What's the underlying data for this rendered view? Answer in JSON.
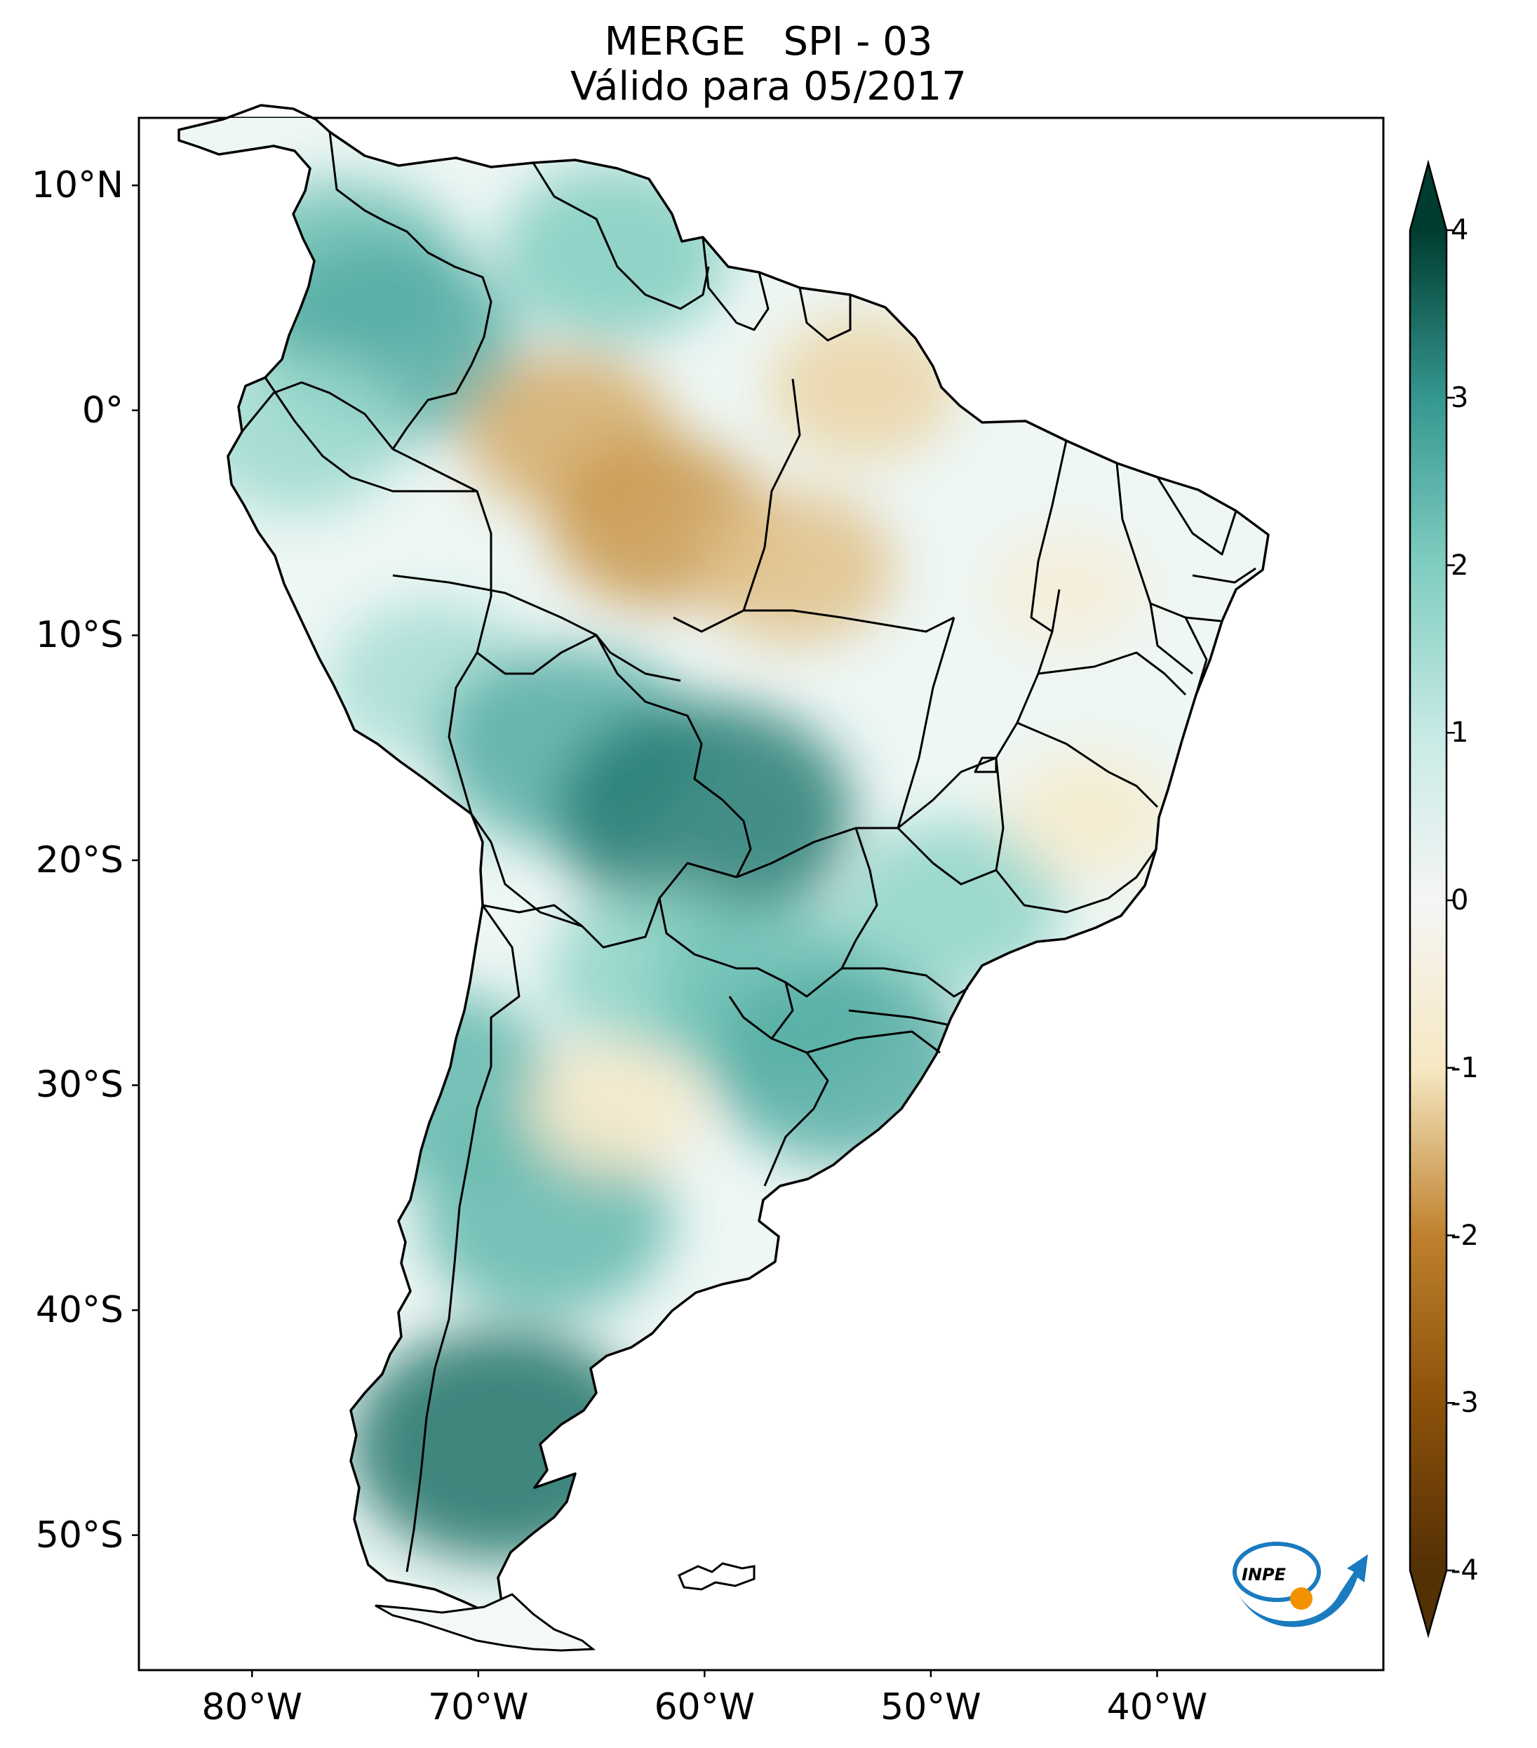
{
  "title": {
    "line1": "MERGE   SPI - 03",
    "line2": "Válido para 05/2017"
  },
  "map": {
    "projection": "PlateCarree",
    "extent": {
      "lon_min": -85,
      "lon_max": -30,
      "lat_min": -56,
      "lat_max": 13
    },
    "lat_ticks": [
      {
        "value": 10,
        "label": "10°N"
      },
      {
        "value": 0,
        "label": "0°"
      },
      {
        "value": -10,
        "label": "10°S"
      },
      {
        "value": -20,
        "label": "20°S"
      },
      {
        "value": -30,
        "label": "30°S"
      },
      {
        "value": -40,
        "label": "40°S"
      },
      {
        "value": -50,
        "label": "50°S"
      }
    ],
    "lon_ticks": [
      {
        "value": -80,
        "label": "80°W"
      },
      {
        "value": -70,
        "label": "70°W"
      },
      {
        "value": -60,
        "label": "60°W"
      },
      {
        "value": -50,
        "label": "50°W"
      },
      {
        "value": -40,
        "label": "40°W"
      }
    ],
    "regions": [
      {
        "lon": -76,
        "lat": 6,
        "spi": 2.3
      },
      {
        "lon": -74,
        "lat": 3,
        "spi": 2.6
      },
      {
        "lon": -64,
        "lat": 7,
        "spi": 2.0
      },
      {
        "lon": -78,
        "lat": -1,
        "spi": 1.6
      },
      {
        "lon": -66,
        "lat": -1,
        "spi": -1.6
      },
      {
        "lon": -62,
        "lat": -5,
        "spi": -1.8
      },
      {
        "lon": -56,
        "lat": -7,
        "spi": -1.4
      },
      {
        "lon": -53,
        "lat": 1,
        "spi": -1.2
      },
      {
        "lon": -72,
        "lat": -12,
        "spi": 1.5
      },
      {
        "lon": -66,
        "lat": -15,
        "spi": 2.6
      },
      {
        "lon": -60,
        "lat": -18,
        "spi": 3.3
      },
      {
        "lon": -62,
        "lat": -25,
        "spi": 1.8
      },
      {
        "lon": -57,
        "lat": -26,
        "spi": 2.2
      },
      {
        "lon": -54,
        "lat": -29,
        "spi": 2.6
      },
      {
        "lon": -49,
        "lat": -22,
        "spi": 1.8
      },
      {
        "lon": -67,
        "lat": -36,
        "spi": 2.4
      },
      {
        "lon": -72,
        "lat": -30,
        "spi": 2.4
      },
      {
        "lon": -69,
        "lat": -46,
        "spi": 3.4
      },
      {
        "lon": -44,
        "lat": -8,
        "spi": -0.6
      },
      {
        "lon": -43,
        "lat": -18,
        "spi": -0.8
      },
      {
        "lon": -64,
        "lat": -31,
        "spi": -0.9
      }
    ]
  },
  "colorbar": {
    "min": -4,
    "max": 4,
    "extend": "both",
    "colormap": "BrBG",
    "ticks": [
      "-4",
      "-3",
      "-2",
      "-1",
      "0",
      "1",
      "2",
      "3",
      "4"
    ],
    "colors": {
      "neg4": "#543005",
      "neg3": "#8c510a",
      "neg2": "#bf812d",
      "neg1": "#f6e8c3",
      "zero": "#f5f5f5",
      "pos1": "#c7eae5",
      "pos2": "#80cdc1",
      "pos3": "#35978f",
      "pos4": "#003c30"
    }
  },
  "logo": {
    "text": "INPE",
    "icon": "inpe-logo-icon",
    "orbit_color": "#1a7bbf",
    "dot_color": "#f39200"
  }
}
